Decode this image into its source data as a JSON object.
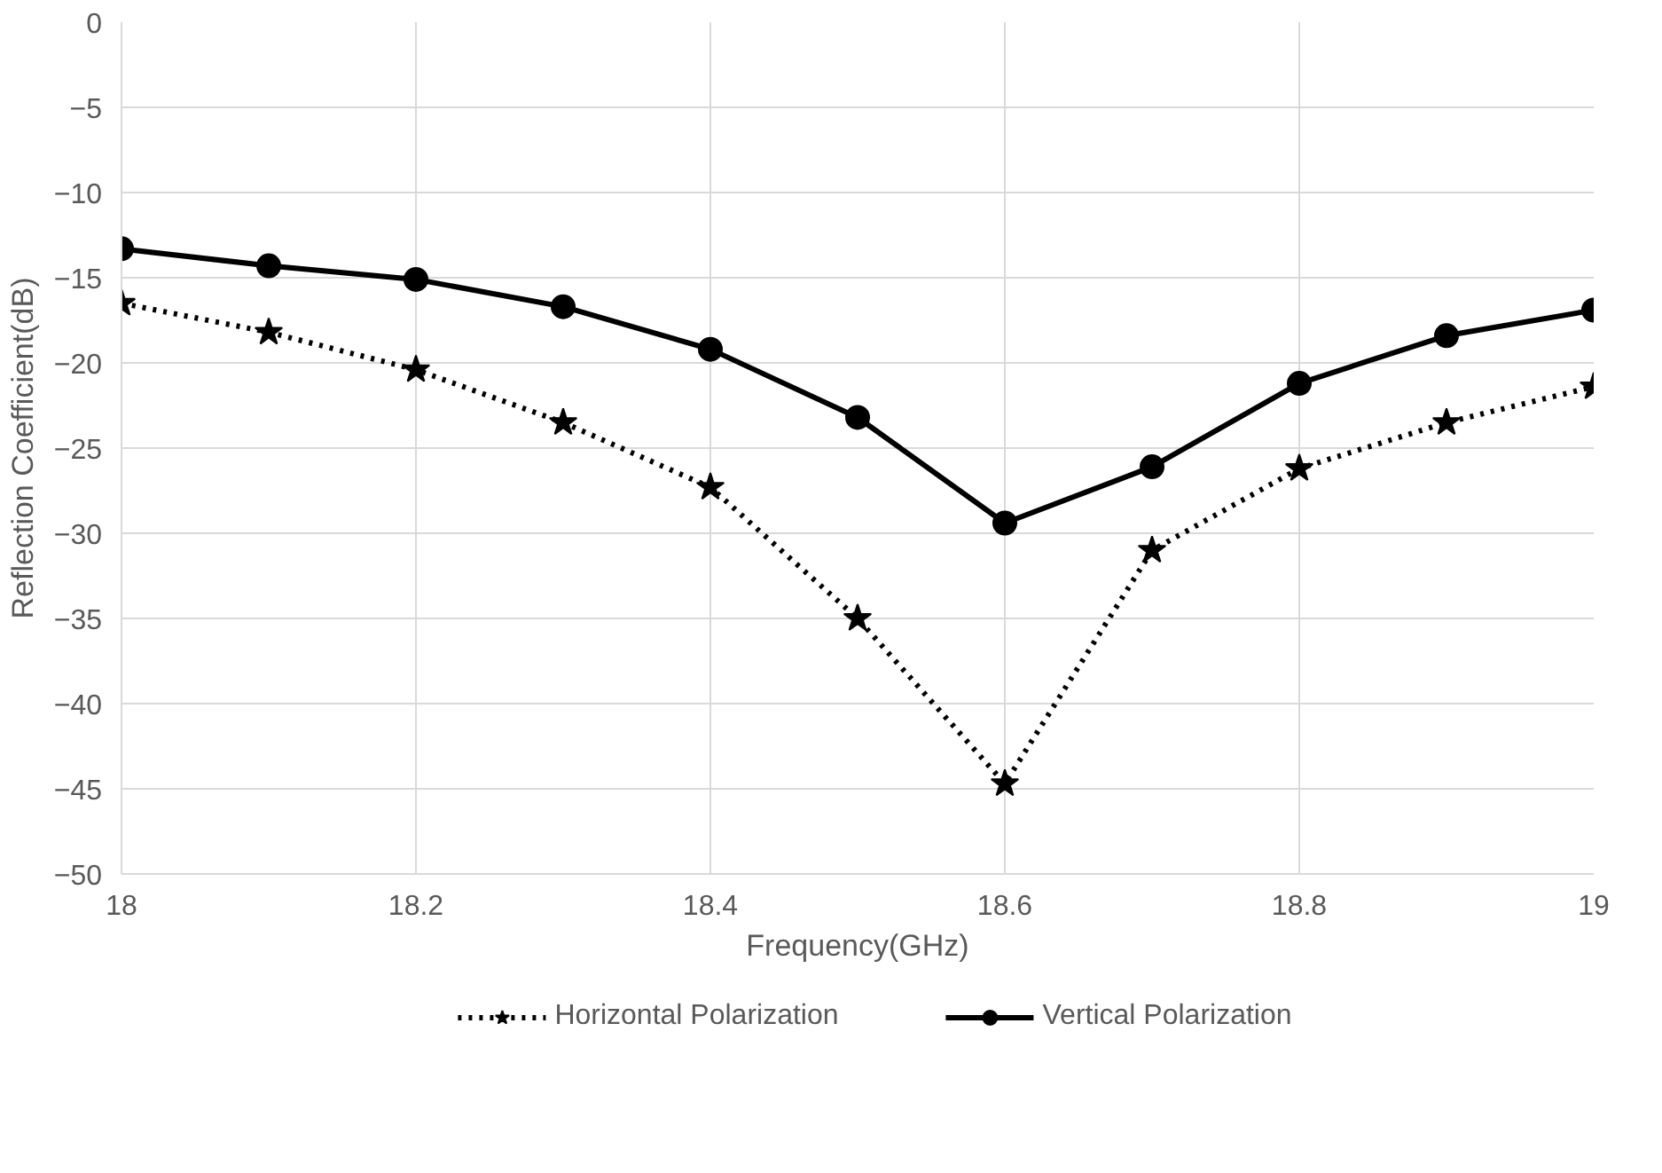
{
  "chart_data": {
    "type": "line",
    "xlabel": "Frequency(GHz)",
    "ylabel": "Reflection Coefficient(dB)",
    "x": [
      18,
      18.1,
      18.2,
      18.3,
      18.4,
      18.5,
      18.6,
      18.7,
      18.8,
      18.9,
      19
    ],
    "series": [
      {
        "name": "Horizontal Polarization",
        "color": "#000000",
        "marker": "star",
        "line_style": "dotted",
        "values": [
          -16.5,
          -18.2,
          -20.4,
          -23.5,
          -27.3,
          -35.0,
          -44.7,
          -31.0,
          -26.2,
          -23.5,
          -21.4
        ]
      },
      {
        "name": "Vertical Polarization",
        "color": "#000000",
        "marker": "circle",
        "line_style": "solid",
        "values": [
          -13.3,
          -14.3,
          -15.1,
          -16.7,
          -19.2,
          -23.2,
          -29.4,
          -26.1,
          -21.2,
          -18.4,
          -16.9
        ]
      }
    ],
    "xlim": [
      18,
      19
    ],
    "xticks": [
      18,
      18.2,
      18.4,
      18.6,
      18.8,
      19
    ],
    "ylim": [
      -50,
      0
    ],
    "yticks": [
      0,
      -5,
      -10,
      -15,
      -20,
      -25,
      -30,
      -35,
      -40,
      -45,
      -50
    ],
    "grid": true,
    "legend": "bottom"
  }
}
